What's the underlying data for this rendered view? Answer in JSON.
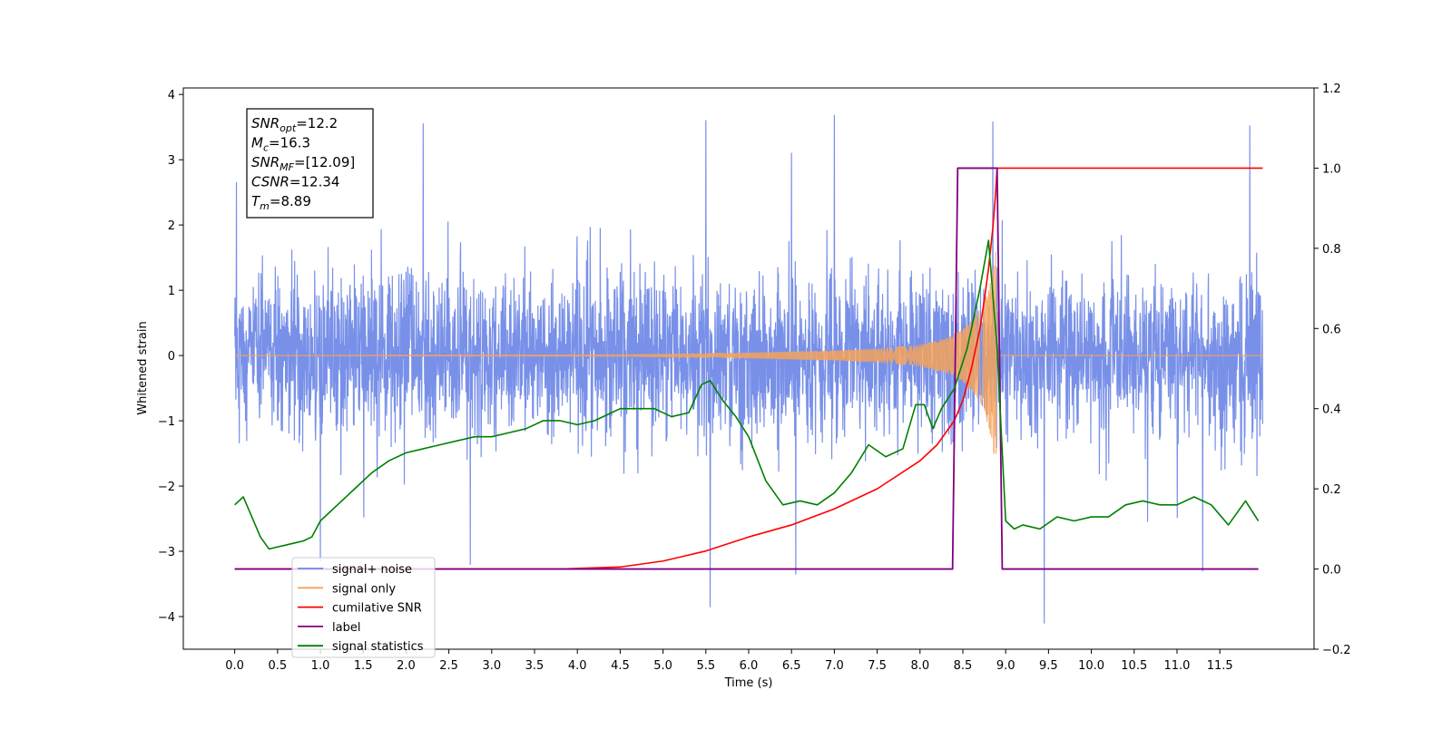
{
  "chart_data": {
    "type": "line",
    "title": "",
    "xlabel": "Time (s)",
    "ylabel": "Whitened strain",
    "ylabel_right": "",
    "xlim": [
      -0.6,
      12.6
    ],
    "ylim": [
      -4.5,
      4.1
    ],
    "ylim_right": [
      -0.2,
      1.2
    ],
    "x_ticks": [
      0.0,
      0.5,
      1.0,
      1.5,
      2.0,
      2.5,
      3.0,
      3.5,
      4.0,
      4.5,
      5.0,
      5.5,
      6.0,
      6.5,
      7.0,
      7.5,
      8.0,
      8.5,
      9.0,
      9.5,
      10.0,
      10.5,
      11.0,
      11.5
    ],
    "x_tick_labels": [
      "0.0",
      "0.5",
      "1.0",
      "1.5",
      "2.0",
      "2.5",
      "3.0",
      "3.5",
      "4.0",
      "4.5",
      "5.0",
      "5.5",
      "6.0",
      "6.5",
      "7.0",
      "7.5",
      "8.0",
      "8.5",
      "9.0",
      "9.5",
      "10.0",
      "10.5",
      "11.0",
      "11.5"
    ],
    "y_ticks": [
      4,
      3,
      2,
      1,
      0,
      -1,
      -2,
      -3,
      -4
    ],
    "y_tick_labels": [
      "4",
      "3",
      "2",
      "1",
      "0",
      "−1",
      "−2",
      "−3",
      "−4"
    ],
    "y_ticks_right": [
      1.2,
      1.0,
      0.8,
      0.6,
      0.4,
      0.2,
      0.0,
      -0.2
    ],
    "y_tick_labels_right": [
      "1.2",
      "1.0",
      "0.8",
      "0.6",
      "0.4",
      "0.2",
      "0.0",
      "−0.2"
    ],
    "grid": false,
    "legend_position": "bottom-left",
    "annotation": [
      {
        "main": "SNR",
        "sub": "opt",
        "value": "=12.2"
      },
      {
        "main": "M",
        "sub": "c",
        "value": "=16.3"
      },
      {
        "main": "SNR",
        "sub": "MF",
        "value": "=[12.09]"
      },
      {
        "main": "CSNR",
        "sub": "",
        "value": "=12.34"
      },
      {
        "main": "T",
        "sub": "m",
        "value": "=8.89"
      }
    ],
    "series": [
      {
        "name": "signal+ noise",
        "axis": "left",
        "color": "#6c87e6",
        "kind": "noise-band",
        "x_range": [
          0.0,
          12.0
        ],
        "typical_amplitude": 1.5,
        "spikes": [
          [
            0.02,
            2.65
          ],
          [
            1.0,
            -3.15
          ],
          [
            5.55,
            -3.85
          ],
          [
            5.5,
            3.6
          ],
          [
            6.55,
            -3.35
          ],
          [
            6.5,
            3.1
          ],
          [
            7.0,
            3.68
          ],
          [
            8.85,
            3.58
          ],
          [
            9.45,
            -4.1
          ],
          [
            11.3,
            -3.3
          ],
          [
            11.85,
            3.52
          ],
          [
            2.2,
            3.55
          ],
          [
            2.75,
            -3.2
          ]
        ]
      },
      {
        "name": "signal only",
        "axis": "left",
        "color": "#f5a35c",
        "kind": "chirp",
        "merger_time": 8.89,
        "peak_amplitude": 1.6,
        "amplitude_points": [
          [
            0.0,
            0.0
          ],
          [
            4.5,
            0.01
          ],
          [
            6.0,
            0.04
          ],
          [
            7.0,
            0.07
          ],
          [
            7.5,
            0.1
          ],
          [
            8.0,
            0.16
          ],
          [
            8.3,
            0.26
          ],
          [
            8.5,
            0.4
          ],
          [
            8.65,
            0.6
          ],
          [
            8.75,
            0.85
          ],
          [
            8.82,
            1.2
          ],
          [
            8.87,
            1.55
          ],
          [
            8.89,
            1.6
          ],
          [
            8.9,
            0.0
          ],
          [
            12.0,
            0.0
          ]
        ]
      },
      {
        "name": "cumilative SNR",
        "axis": "right",
        "color": "#ff0000",
        "x": [
          0.0,
          3.0,
          3.8,
          4.5,
          5.0,
          5.5,
          6.0,
          6.5,
          7.0,
          7.5,
          8.0,
          8.2,
          8.4,
          8.5,
          8.6,
          8.7,
          8.75,
          8.8,
          8.85,
          8.88,
          8.9,
          10.0,
          11.0,
          12.0
        ],
        "y": [
          0.0,
          0.0,
          0.0,
          0.005,
          0.02,
          0.045,
          0.08,
          0.11,
          0.15,
          0.2,
          0.27,
          0.31,
          0.37,
          0.42,
          0.5,
          0.6,
          0.67,
          0.75,
          0.85,
          0.93,
          1.0,
          1.0,
          1.0,
          1.0
        ]
      },
      {
        "name": "label",
        "axis": "right",
        "color": "#800080",
        "x": [
          0.0,
          8.38,
          8.44,
          8.9,
          8.96,
          11.95
        ],
        "y": [
          0.0,
          0.0,
          1.0,
          1.0,
          0.0,
          0.0
        ]
      },
      {
        "name": "signal statistics",
        "axis": "right",
        "color": "#008000",
        "x": [
          0.0,
          0.1,
          0.2,
          0.3,
          0.4,
          0.5,
          0.6,
          0.7,
          0.8,
          0.9,
          1.0,
          1.2,
          1.4,
          1.6,
          1.8,
          2.0,
          2.2,
          2.4,
          2.6,
          2.8,
          3.0,
          3.2,
          3.4,
          3.6,
          3.8,
          4.0,
          4.2,
          4.4,
          4.5,
          4.7,
          4.9,
          5.1,
          5.3,
          5.45,
          5.55,
          5.7,
          5.85,
          6.0,
          6.2,
          6.4,
          6.6,
          6.8,
          7.0,
          7.2,
          7.4,
          7.6,
          7.8,
          7.95,
          8.05,
          8.15,
          8.25,
          8.4,
          8.55,
          8.7,
          8.8,
          8.9,
          9.0,
          9.1,
          9.2,
          9.4,
          9.6,
          9.8,
          10.0,
          10.2,
          10.4,
          10.6,
          10.8,
          11.0,
          11.2,
          11.4,
          11.6,
          11.8,
          11.95
        ],
        "y": [
          0.16,
          0.18,
          0.13,
          0.08,
          0.05,
          0.055,
          0.06,
          0.065,
          0.07,
          0.08,
          0.12,
          0.16,
          0.2,
          0.24,
          0.27,
          0.29,
          0.3,
          0.31,
          0.32,
          0.33,
          0.33,
          0.34,
          0.35,
          0.37,
          0.37,
          0.36,
          0.37,
          0.39,
          0.4,
          0.4,
          0.4,
          0.38,
          0.39,
          0.46,
          0.47,
          0.42,
          0.38,
          0.33,
          0.22,
          0.16,
          0.17,
          0.16,
          0.19,
          0.24,
          0.31,
          0.28,
          0.3,
          0.41,
          0.41,
          0.35,
          0.4,
          0.45,
          0.55,
          0.7,
          0.82,
          0.55,
          0.12,
          0.1,
          0.11,
          0.1,
          0.13,
          0.12,
          0.13,
          0.13,
          0.16,
          0.17,
          0.16,
          0.16,
          0.18,
          0.16,
          0.11,
          0.17,
          0.12
        ]
      }
    ]
  }
}
